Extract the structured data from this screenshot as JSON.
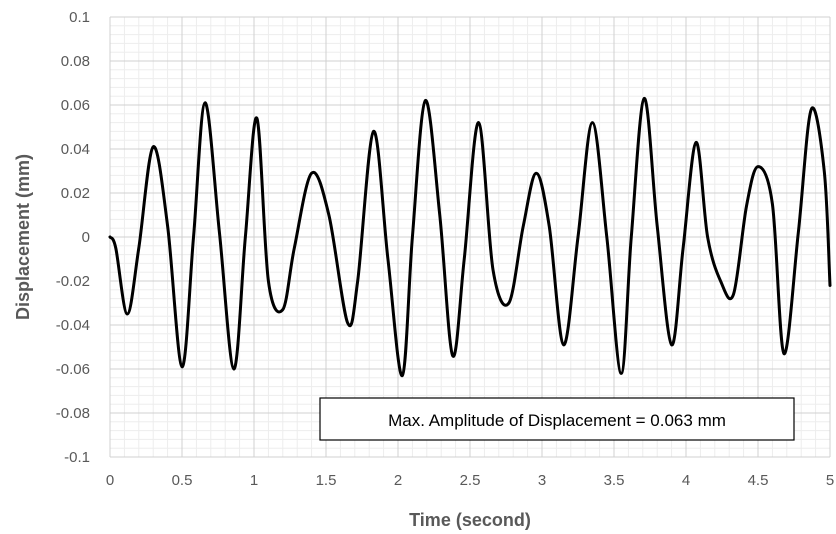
{
  "chart_data": {
    "type": "line",
    "title": "",
    "xlabel": "Time (second)",
    "ylabel": "Displacement (mm)",
    "xlim": [
      0,
      5
    ],
    "ylim": [
      -0.1,
      0.1
    ],
    "x_ticks": [
      "0",
      "0.5",
      "1",
      "1.5",
      "2",
      "2.5",
      "3",
      "3.5",
      "4",
      "4.5",
      "5"
    ],
    "y_ticks": [
      "0.1",
      "0.08",
      "0.06",
      "0.04",
      "0.02",
      "0",
      "-0.02",
      "-0.04",
      "-0.06",
      "-0.08",
      "-0.1"
    ],
    "grid": true,
    "minor_grid": true,
    "legend": "none",
    "annotation": "Max. Amplitude of Displacement = 0.063 mm",
    "series": [
      {
        "color": "#000000",
        "x": [
          0,
          0.04,
          0.12,
          0.2,
          0.3,
          0.4,
          0.5,
          0.58,
          0.66,
          0.76,
          0.86,
          0.94,
          1.02,
          1.1,
          1.2,
          1.28,
          1.4,
          1.52,
          1.65,
          1.72,
          1.83,
          1.93,
          2.03,
          2.1,
          2.19,
          2.29,
          2.38,
          2.46,
          2.56,
          2.66,
          2.77,
          2.87,
          2.96,
          3.05,
          3.15,
          3.25,
          3.35,
          3.45,
          3.55,
          3.62,
          3.71,
          3.8,
          3.9,
          3.98,
          4.07,
          4.15,
          4.24,
          4.33,
          4.42,
          4.5,
          4.6,
          4.68,
          4.78,
          4.87,
          4.96,
          5.0
        ],
        "y": [
          0,
          -0.005,
          -0.035,
          -0.005,
          0.041,
          0.005,
          -0.059,
          0.0,
          0.061,
          0.002,
          -0.06,
          0.0,
          0.054,
          -0.02,
          -0.033,
          -0.005,
          0.029,
          0.01,
          -0.039,
          -0.02,
          0.048,
          -0.01,
          -0.063,
          0.0,
          0.062,
          0.01,
          -0.054,
          -0.01,
          0.052,
          -0.015,
          -0.03,
          0.005,
          0.029,
          0.005,
          -0.049,
          0.0,
          0.052,
          0.0,
          -0.062,
          0.0,
          0.063,
          0.005,
          -0.049,
          -0.005,
          0.043,
          0.0,
          -0.02,
          -0.026,
          0.014,
          0.032,
          0.015,
          -0.053,
          0.002,
          0.058,
          0.03,
          -0.022
        ]
      }
    ]
  }
}
